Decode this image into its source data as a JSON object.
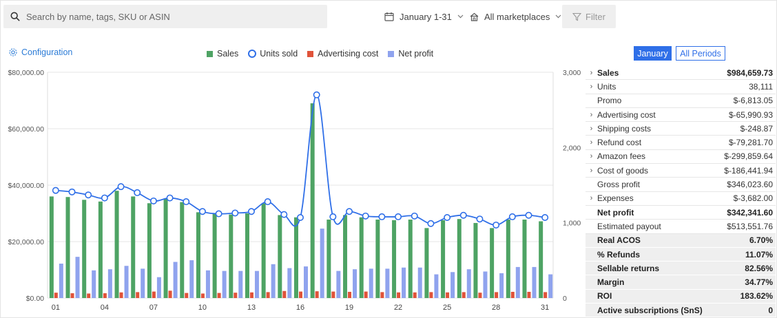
{
  "search": {
    "placeholder": "Search by name, tags, SKU or ASIN"
  },
  "date_range": {
    "label": "January 1-31"
  },
  "marketplace": {
    "label": "All marketplaces"
  },
  "filter": {
    "label": "Filter"
  },
  "config": {
    "label": "Configuration"
  },
  "legend": [
    {
      "label": "Sales",
      "color": "#4ea364",
      "shape": "square"
    },
    {
      "label": "Units sold",
      "color": "#2f6fe8",
      "shape": "circle"
    },
    {
      "label": "Advertising cost",
      "color": "#e0533a",
      "shape": "square"
    },
    {
      "label": "Net profit",
      "color": "#8fa3ee",
      "shape": "square"
    }
  ],
  "period_tabs": {
    "active": "January",
    "inactive": "All Periods"
  },
  "metrics": [
    {
      "name": "Sales",
      "value": "$984,659.73",
      "chevron": true,
      "style": "bold"
    },
    {
      "name": "Units",
      "value": "38,111",
      "chevron": true,
      "style": "normal"
    },
    {
      "name": "Promo",
      "value": "$-6,813.05",
      "chevron": false,
      "style": "normal"
    },
    {
      "name": "Advertising cost",
      "value": "$-65,990.93",
      "chevron": true,
      "style": "normal"
    },
    {
      "name": "Shipping costs",
      "value": "$-248.87",
      "chevron": true,
      "style": "normal"
    },
    {
      "name": "Refund cost",
      "value": "$-79,281.70",
      "chevron": true,
      "style": "normal"
    },
    {
      "name": "Amazon fees",
      "value": "$-299,859.64",
      "chevron": true,
      "style": "normal"
    },
    {
      "name": "Cost of goods",
      "value": "$-186,441.94",
      "chevron": true,
      "style": "normal"
    },
    {
      "name": "Gross profit",
      "value": "$346,023.60",
      "chevron": false,
      "style": "normal"
    },
    {
      "name": "Expenses",
      "value": "$-3,682.00",
      "chevron": true,
      "style": "normal"
    },
    {
      "name": "Net profit",
      "value": "$342,341.60",
      "chevron": false,
      "style": "bold"
    },
    {
      "name": "Estimated payout",
      "value": "$513,551.76",
      "chevron": false,
      "style": "normal"
    },
    {
      "name": "Real ACOS",
      "value": "6.70%",
      "chevron": false,
      "style": "gray"
    },
    {
      "name": "% Refunds",
      "value": "11.07%",
      "chevron": false,
      "style": "gray"
    },
    {
      "name": "Sellable returns",
      "value": "82.56%",
      "chevron": false,
      "style": "gray"
    },
    {
      "name": "Margin",
      "value": "34.77%",
      "chevron": false,
      "style": "gray"
    },
    {
      "name": "ROI",
      "value": "183.62%",
      "chevron": false,
      "style": "gray"
    },
    {
      "name": "Active subscriptions (SnS)",
      "value": "0",
      "chevron": false,
      "style": "gray"
    }
  ],
  "chart_data": {
    "type": "bar",
    "categories": [
      "01",
      "02",
      "03",
      "04",
      "05",
      "06",
      "07",
      "08",
      "09",
      "10",
      "11",
      "12",
      "13",
      "14",
      "15",
      "16",
      "17",
      "18",
      "19",
      "20",
      "21",
      "22",
      "23",
      "24",
      "25",
      "26",
      "27",
      "28",
      "29",
      "30",
      "31"
    ],
    "x_tick_labels": [
      "01",
      "04",
      "07",
      "10",
      "13",
      "16",
      "19",
      "22",
      "25",
      "28",
      "31"
    ],
    "y_left": {
      "ticks": [
        "$0.00",
        "$20,000.00",
        "$40,000.00",
        "$60,000.00",
        "$80,000.00"
      ],
      "min": 0,
      "max": 80000
    },
    "y_right": {
      "ticks": [
        "0",
        "1,000",
        "2,000",
        "3,000"
      ],
      "min": 0,
      "max": 3000
    },
    "grid": true,
    "series": [
      {
        "name": "Sales",
        "axis": "left",
        "color": "#4ea364",
        "values": [
          36000,
          35800,
          34800,
          34200,
          38000,
          36000,
          33600,
          35200,
          34000,
          30400,
          29800,
          29600,
          30000,
          33600,
          29400,
          28600,
          69000,
          27800,
          29400,
          28600,
          27800,
          27600,
          27800,
          24800,
          27600,
          28000,
          26600,
          24800,
          27800,
          27800,
          27200
        ]
      },
      {
        "name": "Advertising cost",
        "axis": "left",
        "color": "#e0533a",
        "values": [
          1900,
          1700,
          1600,
          1700,
          2000,
          2100,
          2300,
          2600,
          1800,
          1600,
          1800,
          1900,
          2000,
          2100,
          2500,
          2300,
          2400,
          2300,
          2200,
          2300,
          2100,
          2000,
          2000,
          2100,
          2000,
          2100,
          1900,
          2100,
          2200,
          2200,
          2100
        ]
      },
      {
        "name": "Net profit",
        "axis": "left",
        "color": "#8fa3ee",
        "values": [
          12200,
          14600,
          9800,
          10200,
          11400,
          10400,
          7400,
          12800,
          13400,
          9800,
          9600,
          9600,
          9600,
          12000,
          10600,
          11200,
          24600,
          9600,
          10200,
          10400,
          10400,
          10800,
          10800,
          8400,
          9200,
          10200,
          9400,
          8800,
          11000,
          11000,
          8400
        ]
      },
      {
        "name": "Units sold",
        "axis": "right",
        "type": "line",
        "color": "#2f6fe8",
        "values": [
          1430,
          1410,
          1370,
          1330,
          1480,
          1400,
          1290,
          1330,
          1280,
          1150,
          1120,
          1130,
          1150,
          1280,
          1110,
          1070,
          2700,
          1080,
          1150,
          1090,
          1080,
          1080,
          1090,
          990,
          1070,
          1100,
          1050,
          970,
          1080,
          1100,
          1070
        ]
      }
    ]
  }
}
